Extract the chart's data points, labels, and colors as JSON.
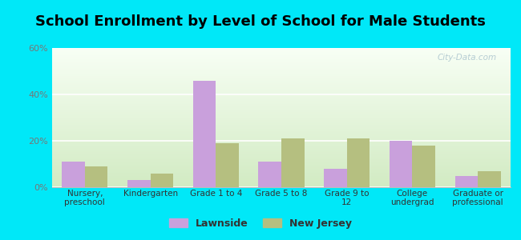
{
  "title": "School Enrollment by Level of School for Male Students",
  "categories": [
    "Nursery,\npreschool",
    "Kindergarten",
    "Grade 1 to 4",
    "Grade 5 to 8",
    "Grade 9 to\n12",
    "College\nundergrad",
    "Graduate or\nprofessional"
  ],
  "lawnside": [
    11,
    3,
    46,
    11,
    8,
    20,
    5
  ],
  "new_jersey": [
    9,
    6,
    19,
    21,
    21,
    18,
    7
  ],
  "lawnside_color": "#c9a0dc",
  "nj_color": "#b5bf80",
  "background_outer": "#00e8f8",
  "background_plot_top": "#f5fdf0",
  "background_plot_bottom": "#d8eecc",
  "title_fontsize": 13,
  "legend_lawnside": "Lawnside",
  "legend_nj": "New Jersey",
  "ylim": [
    0,
    60
  ],
  "yticks": [
    0,
    20,
    40,
    60
  ],
  "ytick_labels": [
    "0%",
    "20%",
    "40%",
    "60%"
  ],
  "bar_width": 0.35,
  "watermark": "City-Data.com"
}
